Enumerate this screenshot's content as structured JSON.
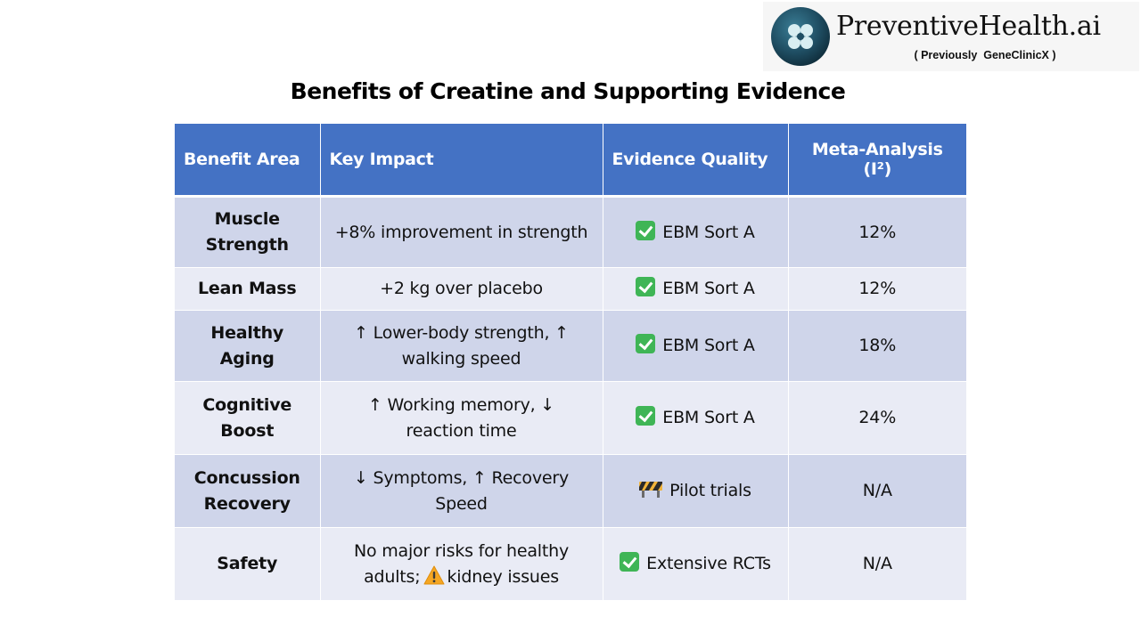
{
  "brand": {
    "name": "PreventiveHealth.ai",
    "subtitle": "( Previously  GeneClinicX )"
  },
  "title": "Benefits of Creatine and Supporting Evidence",
  "table": {
    "headers": [
      "Benefit Area",
      "Key Impact",
      "Evidence Quality",
      "Meta-Analysis (I²)"
    ],
    "rows": [
      {
        "area": [
          "Muscle",
          "Strength"
        ],
        "impact": [
          "+8% improvement in strength"
        ],
        "evidence_icon": "check-icon",
        "evidence": "EBM Sort A",
        "meta": "12%"
      },
      {
        "area": [
          "Lean Mass"
        ],
        "impact": [
          "+2 kg over placebo"
        ],
        "evidence_icon": "check-icon",
        "evidence": "EBM Sort A",
        "meta": "12%"
      },
      {
        "area": [
          "Healthy Aging"
        ],
        "impact": [
          "↑ Lower-body strength, ↑",
          "walking speed"
        ],
        "evidence_icon": "check-icon",
        "evidence": "EBM Sort A",
        "meta": "18%"
      },
      {
        "area": [
          "Cognitive",
          "Boost"
        ],
        "impact": [
          "↑ Working memory, ↓",
          "reaction time"
        ],
        "evidence_icon": "check-icon",
        "evidence": "EBM Sort A",
        "meta": "24%"
      },
      {
        "area": [
          "Concussion",
          "Recovery"
        ],
        "impact": [
          "↓ Symptoms, ↑ Recovery",
          "Speed"
        ],
        "evidence_icon": "barrier-icon",
        "evidence": "Pilot trials",
        "meta": "N/A"
      },
      {
        "area": [
          "Safety"
        ],
        "impact": [
          "No major risks for healthy",
          "adults;"
        ],
        "impact_suffix_icon": "warning-icon",
        "impact_suffix": "kidney issues",
        "evidence_icon": "check-icon",
        "evidence": "Extensive RCTs",
        "meta": "N/A"
      }
    ]
  },
  "colors": {
    "header_bg": "#4472c4",
    "row_odd": "#cfd5ea",
    "row_even": "#e9ebf5",
    "check": "#3fb556",
    "logo_circle": "#1f4e63"
  }
}
